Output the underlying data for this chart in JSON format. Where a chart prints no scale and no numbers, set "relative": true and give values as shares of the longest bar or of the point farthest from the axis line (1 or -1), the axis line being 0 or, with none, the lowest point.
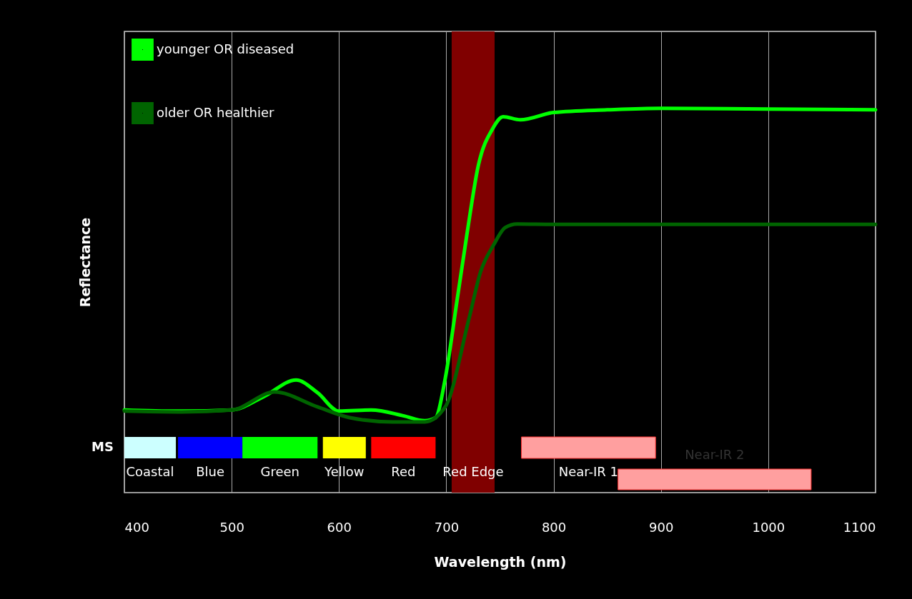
{
  "chart_data": {
    "type": "line",
    "relative": true,
    "xlabel": "Wavelength (nm)",
    "ylabel": "Reflectance",
    "xlim": [
      400,
      1100
    ],
    "xticks": [
      400,
      500,
      600,
      700,
      800,
      900,
      1000,
      1100
    ],
    "series": [
      {
        "name": "younger OR diseased",
        "color": "#00ff00",
        "x": [
          400,
          450,
          500,
          530,
          560,
          580,
          600,
          630,
          660,
          680,
          690,
          699,
          710,
          719,
          730,
          743,
          753,
          769,
          800,
          850,
          900,
          1000,
          1100
        ],
        "values": [
          0.215,
          0.212,
          0.215,
          0.25,
          0.293,
          0.26,
          0.212,
          0.215,
          0.2,
          0.187,
          0.195,
          0.297,
          0.5,
          0.668,
          0.853,
          0.946,
          0.978,
          0.97,
          0.989,
          0.996,
          1.0,
          0.998,
          0.996
        ]
      },
      {
        "name": "older OR healthier",
        "color": "#006400",
        "x": [
          400,
          450,
          500,
          540,
          580,
          610,
          650,
          680,
          699,
          721,
          732,
          744,
          755,
          766,
          800,
          900,
          1000,
          1100
        ],
        "values": [
          0.212,
          0.21,
          0.215,
          0.262,
          0.223,
          0.195,
          0.184,
          0.184,
          0.223,
          0.451,
          0.575,
          0.644,
          0.69,
          0.699,
          0.698,
          0.698,
          0.698,
          0.698
        ]
      }
    ],
    "bands": [
      {
        "axis": "x",
        "from": 400,
        "to": 448,
        "label": "Coastal",
        "color": "#ccffff"
      },
      {
        "axis": "x",
        "from": 450,
        "to": 510,
        "label": "Blue",
        "color": "#0000ff"
      },
      {
        "axis": "x",
        "from": 510,
        "to": 580,
        "label": "Green",
        "color": "#00ff00"
      },
      {
        "axis": "x",
        "from": 585,
        "to": 625,
        "label": "Yellow",
        "color": "#ffff00"
      },
      {
        "axis": "x",
        "from": 630,
        "to": 690,
        "label": "Red",
        "color": "#ff0000"
      },
      {
        "axis": "x",
        "from": 705,
        "to": 745,
        "label": "Red Edge",
        "color": "#800000"
      },
      {
        "axis": "x",
        "from": 770,
        "to": 895,
        "label": "Near-IR 1",
        "color": "#ff9f9f"
      },
      {
        "axis": "x",
        "from": 860,
        "to": 1040,
        "label": "Near-IR 2",
        "color": "#ff9f9f"
      }
    ],
    "annotations": [
      "MS"
    ],
    "grid": "x",
    "legend": "top left",
    "line_style": "solid",
    "marker": "none"
  }
}
